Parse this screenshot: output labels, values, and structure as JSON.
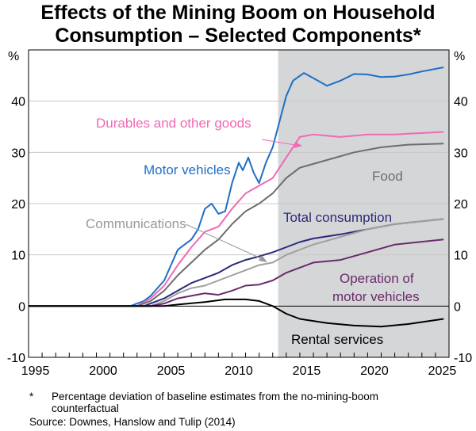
{
  "chart_data": {
    "type": "line",
    "title": "Effects of the Mining Boom on Household Consumption – Selected Components*",
    "ylabel_left": "%",
    "ylabel_right": "%",
    "xlim": [
      1995,
      2026
    ],
    "ylim": [
      -10,
      50
    ],
    "x_ticks": [
      1995,
      2000,
      2005,
      2010,
      2015,
      2020,
      2025
    ],
    "y_ticks": [
      -10,
      0,
      10,
      20,
      30,
      40
    ],
    "grid": true,
    "shaded_region": {
      "from": 2013.4,
      "to": 2026,
      "color": "#d4d6d8"
    },
    "series": [
      {
        "name": "Motor vehicles",
        "color": "#1f6fc5",
        "x": [
          1995,
          2002.5,
          2003.5,
          2004,
          2005,
          2006,
          2006.5,
          2007,
          2007.5,
          2008,
          2008.5,
          2009,
          2009.5,
          2010,
          2010.5,
          2010.8,
          2011.2,
          2011.6,
          2012,
          2012.5,
          2013,
          2013.5,
          2014,
          2014.5,
          2015.3,
          2016,
          2017,
          2018,
          2019,
          2020,
          2021,
          2022,
          2023,
          2024,
          2025.6
        ],
        "y": [
          0,
          0,
          1,
          2,
          5,
          11,
          12,
          13,
          15,
          19,
          20,
          18,
          18.5,
          24,
          28,
          26.5,
          29,
          26,
          24,
          28,
          31,
          36,
          41,
          44,
          45.5,
          44.5,
          43,
          44,
          45.3,
          45.2,
          44.7,
          44.8,
          45.2,
          45.8,
          46.6
        ]
      },
      {
        "name": "Durables and other goods",
        "color": "#f06ab4",
        "x": [
          1995,
          2003,
          2004,
          2005,
          2006,
          2007,
          2008,
          2008.5,
          2009,
          2010,
          2011,
          2012,
          2013,
          2014,
          2015,
          2016,
          2018,
          2020,
          2022,
          2025.6
        ],
        "y": [
          0,
          0,
          1.5,
          4,
          8,
          11.5,
          14.5,
          15,
          15.5,
          19,
          22,
          23.5,
          25,
          29,
          33,
          33.5,
          33,
          33.5,
          33.5,
          34
        ]
      },
      {
        "name": "Food",
        "color": "#6d6d6d",
        "x": [
          1995,
          2003,
          2004,
          2005,
          2006,
          2007,
          2008,
          2009,
          2010,
          2011,
          2012,
          2013,
          2014,
          2015,
          2017,
          2019,
          2021,
          2023,
          2025.6
        ],
        "y": [
          0,
          0,
          1,
          3,
          6,
          8.5,
          11,
          13,
          16,
          18.5,
          20,
          22,
          25,
          27,
          28.5,
          30,
          31,
          31.5,
          31.7
        ]
      },
      {
        "name": "Total consumption",
        "color": "#2a2a7a",
        "x": [
          1995,
          2003.5,
          2005,
          2006,
          2007,
          2008,
          2009,
          2010,
          2011,
          2012,
          2013,
          2014,
          2015,
          2016,
          2018,
          2020,
          2022,
          2025.6
        ],
        "y": [
          0,
          0,
          1.5,
          3,
          4.5,
          5.5,
          6.5,
          8,
          9,
          9.7,
          10.5,
          11.5,
          12.5,
          13.2,
          14,
          15,
          16,
          17
        ]
      },
      {
        "name": "Communications",
        "color": "#a0a0a0",
        "x": [
          1995,
          2004,
          2005,
          2006,
          2007,
          2008,
          2009,
          2010,
          2011,
          2012,
          2013,
          2014,
          2015,
          2016,
          2018,
          2020,
          2022,
          2025.6
        ],
        "y": [
          0,
          0,
          1,
          2.5,
          3.5,
          4,
          5,
          6,
          7,
          8,
          8.5,
          10,
          11,
          12,
          13.5,
          15,
          16,
          17
        ]
      },
      {
        "name": "Operation of motor vehicles",
        "color": "#6b2a6b",
        "x": [
          1995,
          2004,
          2005,
          2006,
          2007,
          2008,
          2009,
          2010,
          2011,
          2012,
          2013,
          2014,
          2015,
          2016,
          2018,
          2020,
          2022,
          2025.6
        ],
        "y": [
          0,
          0,
          0.5,
          1.5,
          2,
          2.5,
          2.2,
          3,
          4,
          4.2,
          5,
          6.5,
          7.5,
          8.5,
          9,
          10.5,
          12,
          13
        ]
      },
      {
        "name": "Rental services",
        "color": "#000000",
        "x": [
          1995,
          2005,
          2006,
          2008,
          2009.5,
          2011,
          2012,
          2013,
          2014,
          2015,
          2017,
          2019,
          2021,
          2023,
          2025.6
        ],
        "y": [
          0,
          0,
          0.3,
          0.8,
          1.3,
          1.3,
          1,
          0,
          -1.5,
          -2.5,
          -3.3,
          -3.8,
          -4,
          -3.5,
          -2.5
        ]
      }
    ]
  },
  "labels": {
    "title_line1": "Effects of the Mining Boom on Household",
    "title_line2": "Consumption – Selected Components*",
    "series_label_operation_1": "Operation of",
    "series_label_operation_2": "motor vehicles"
  },
  "footnote": {
    "marker": "*",
    "text_line1": "Percentage deviation of baseline estimates from the no-mining-boom",
    "text_line2": "counterfactual",
    "source": "Source: Downes, Hanslow and Tulip (2014)"
  }
}
